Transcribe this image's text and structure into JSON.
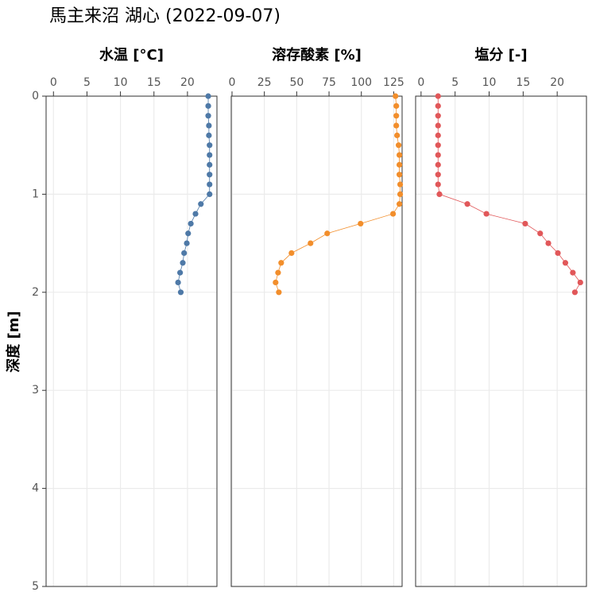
{
  "title": "馬主来沼 湖心 (2022-09-07)",
  "y_label": "深度 [m]",
  "chart_data": [
    {
      "type": "line",
      "title": "水温 [°C]",
      "color": "#4e79a7",
      "x": [
        23.1,
        23.1,
        23.1,
        23.2,
        23.2,
        23.3,
        23.3,
        23.3,
        23.3,
        23.3,
        23.3,
        22.0,
        21.2,
        20.5,
        20.1,
        19.9,
        19.5,
        19.3,
        18.9,
        18.6,
        19.0
      ],
      "y": [
        0,
        0.1,
        0.2,
        0.3,
        0.4,
        0.5,
        0.6,
        0.7,
        0.8,
        0.9,
        1.0,
        1.1,
        1.2,
        1.3,
        1.4,
        1.5,
        1.6,
        1.7,
        1.8,
        1.9,
        2.0
      ],
      "xlim": [
        -1.1,
        24.4
      ],
      "xticks": [
        0,
        5,
        10,
        15,
        20
      ],
      "ylim": [
        0,
        5
      ],
      "yticks": [
        0,
        1,
        2,
        3,
        4,
        5
      ],
      "grid": true
    },
    {
      "type": "line",
      "title": "溶存酸素 [%]",
      "color": "#f28e2b",
      "x": [
        126.4,
        127,
        127,
        127,
        127.6,
        128.8,
        129.4,
        129.4,
        129.4,
        130,
        130,
        129.4,
        124.5,
        99.4,
        73.6,
        60.7,
        46,
        38,
        35.6,
        33.7,
        36.2
      ],
      "y": [
        0,
        0.1,
        0.2,
        0.3,
        0.4,
        0.5,
        0.6,
        0.7,
        0.8,
        0.9,
        1.0,
        1.1,
        1.2,
        1.3,
        1.4,
        1.5,
        1.6,
        1.7,
        1.8,
        1.9,
        2.0
      ],
      "xlim": [
        -0.6,
        131.5
      ],
      "xticks": [
        0,
        25,
        50,
        75,
        100,
        125
      ],
      "ylim": [
        0,
        5
      ],
      "grid": true
    },
    {
      "type": "line",
      "title": "塩分 [-]",
      "color": "#e15759",
      "x": [
        2.5,
        2.5,
        2.5,
        2.5,
        2.5,
        2.5,
        2.5,
        2.5,
        2.5,
        2.5,
        2.7,
        6.8,
        9.6,
        15.3,
        17.5,
        18.7,
        20.1,
        21.2,
        22.3,
        23.4,
        22.6
      ],
      "y": [
        0,
        0.1,
        0.2,
        0.3,
        0.4,
        0.5,
        0.6,
        0.7,
        0.8,
        0.9,
        1.0,
        1.1,
        1.2,
        1.3,
        1.4,
        1.5,
        1.6,
        1.7,
        1.8,
        1.9,
        2.0
      ],
      "xlim": [
        -0.8,
        24.3
      ],
      "xticks": [
        0,
        5,
        10,
        15,
        20
      ],
      "ylim": [
        0,
        5
      ],
      "grid": true
    }
  ]
}
